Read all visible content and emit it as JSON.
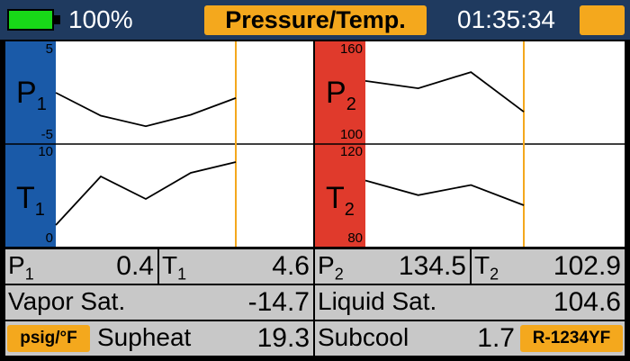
{
  "header": {
    "battery_text": "100%",
    "title": "Pressure/Temp.",
    "clock": "01:35:34"
  },
  "left_panel": {
    "top": {
      "symbol": "P",
      "sub": "1",
      "max": "5",
      "min": "-5",
      "series": [
        0.0,
        -2.6,
        -3.8,
        -2.5,
        -0.6
      ]
    },
    "bottom": {
      "symbol": "T",
      "sub": "1",
      "max": "10",
      "min": "0",
      "series": [
        1.8,
        7.2,
        4.7,
        7.6,
        8.8
      ]
    }
  },
  "right_panel": {
    "top": {
      "symbol": "P",
      "sub": "2",
      "max": "160",
      "min": "100",
      "series": [
        138,
        133,
        144,
        117
      ]
    },
    "bottom": {
      "symbol": "T",
      "sub": "2",
      "max": "120",
      "min": "80",
      "series": [
        107,
        100.5,
        105,
        96
      ]
    }
  },
  "readouts": {
    "p1_label": "P",
    "p1_sub": "1",
    "p1_value": "0.4",
    "t1_label": "T",
    "t1_sub": "1",
    "t1_value": "4.6",
    "p2_label": "P",
    "p2_sub": "2",
    "p2_value": "134.5",
    "t2_label": "T",
    "t2_sub": "2",
    "t2_value": "102.9",
    "vapor_label": "Vapor Sat.",
    "vapor_value": "-14.7",
    "liquid_label": "Liquid Sat.",
    "liquid_value": "104.6",
    "units_button": "psig/°F",
    "supheat_label": "Supheat",
    "supheat_value": "19.3",
    "subcool_label": "Subcool",
    "subcool_value": "1.7",
    "refrigerant_button": "R-1234YF"
  },
  "colors": {
    "left_sidebar": "#1a5aa8",
    "right_sidebar": "#e03a2c",
    "accent": "#f4a81d",
    "cursor_line": "#f4a81d"
  }
}
